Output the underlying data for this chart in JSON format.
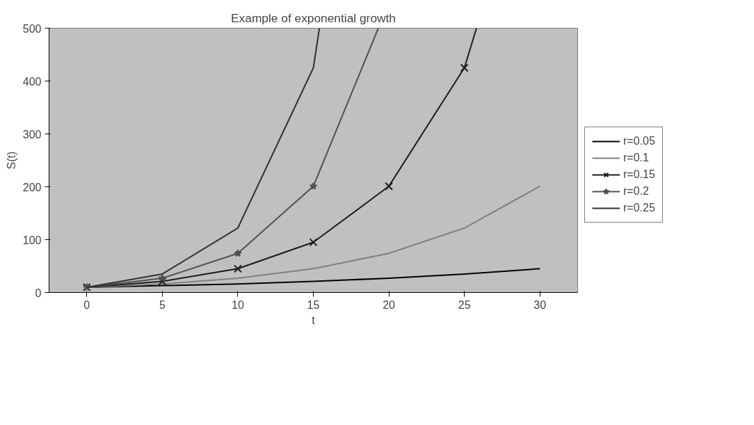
{
  "chart_data": {
    "type": "line",
    "title": "Example of exponential growth",
    "xlabel": "t",
    "ylabel": "S(t)",
    "xlim": [
      -2.5,
      32.5
    ],
    "xticks": [
      0,
      5,
      10,
      15,
      20,
      25,
      30
    ],
    "ylim": [
      0,
      500
    ],
    "yticks": [
      0,
      100,
      200,
      300,
      400,
      500
    ],
    "grid": false,
    "legend": "right",
    "line_style": "solid",
    "series": [
      {
        "name": "r=0.05",
        "color": "#000000",
        "marker": "none",
        "x": [
          0,
          5,
          10,
          15,
          20,
          25,
          30
        ],
        "values": [
          10,
          13,
          16,
          21,
          27,
          35,
          45
        ]
      },
      {
        "name": "r=0.1",
        "color": "#808080",
        "marker": "none",
        "x": [
          0,
          5,
          10,
          15,
          20,
          25,
          30
        ],
        "values": [
          10,
          16,
          27,
          45,
          74,
          122,
          201
        ]
      },
      {
        "name": "r=0.15",
        "color": "#1a1a1a",
        "marker": "cross",
        "x": [
          0,
          5,
          10,
          15,
          20,
          25,
          25.8
        ],
        "values": [
          10,
          21,
          45,
          95,
          201,
          425,
          500
        ]
      },
      {
        "name": "r=0.2",
        "color": "#505050",
        "marker": "star",
        "x": [
          0,
          5,
          10,
          15,
          19.3
        ],
        "values": [
          10,
          27,
          74,
          201,
          500
        ]
      },
      {
        "name": "r=0.25",
        "color": "#303030",
        "marker": "none",
        "x": [
          0,
          5,
          10,
          15,
          15.4
        ],
        "values": [
          10,
          35,
          122,
          425,
          500
        ]
      }
    ]
  }
}
